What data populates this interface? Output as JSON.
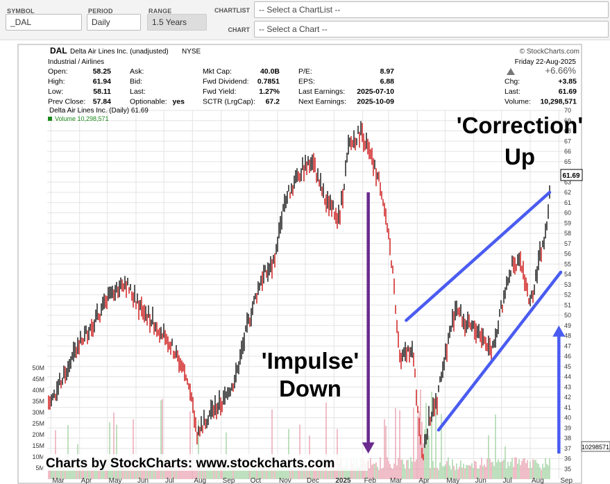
{
  "toolbar": {
    "symbol_label": "SYMBOL",
    "symbol_value": "_DAL",
    "period_label": "PERIOD",
    "period_value": "Daily",
    "range_label": "RANGE",
    "range_value": "1.5 Years",
    "chartlist_label": "CHARTLIST",
    "chartlist_placeholder": "-- Select a ChartList --",
    "chart_label": "CHART",
    "chart_placeholder": "-- Select a Chart --"
  },
  "header": {
    "ticker": "DAL",
    "company": "Delta Air Lines Inc. (unadjusted)",
    "exchange": "NYSE",
    "copyright": "© StockCharts.com",
    "industry": "Industrial / Airlines",
    "date": "Friday  22-Aug-2025",
    "pct_change": "+6.66%",
    "stats_col1": [
      [
        "Open:",
        "58.25"
      ],
      [
        "High:",
        "61.94"
      ],
      [
        "Low:",
        "58.11"
      ],
      [
        "Prev Close:",
        "57.84"
      ]
    ],
    "stats_col2": [
      [
        "Ask:",
        ""
      ],
      [
        "Bid:",
        ""
      ],
      [
        "Last:",
        ""
      ],
      [
        "Optionable:",
        "yes"
      ]
    ],
    "stats_col3": [
      [
        "Mkt Cap:",
        "40.0B"
      ],
      [
        "Fwd Dividend:",
        "0.7851"
      ],
      [
        "Fwd Yield:",
        "1.27%"
      ],
      [
        "SCTR (LrgCap):",
        "67.2"
      ]
    ],
    "stats_col4": [
      [
        "P/E:",
        "8.97"
      ],
      [
        "EPS:",
        "6.88"
      ],
      [
        "Last Earnings:",
        "2025-07-10"
      ],
      [
        "Next Earnings:",
        "2025-10-09"
      ]
    ],
    "stats_col5": [
      [
        "",
        ""
      ],
      [
        "Chg:",
        "+3.85"
      ],
      [
        "Last:",
        "61.69"
      ],
      [
        "Volume:",
        "10,298,571"
      ]
    ],
    "legend_price": "Delta Air Lines Inc. (Daily) 61.69",
    "legend_volume": "Volume 10,298,571"
  },
  "annotations": {
    "correction_line1": "'Correction'",
    "correction_line2": "Up",
    "impulse_line1": "'Impulse'",
    "impulse_line2": "Down",
    "watermark": "Charts by StockCharts:  www.stockcharts.com"
  },
  "colors": {
    "up_bar": "#111111",
    "down_bar": "#cc1111",
    "volume_up": "#9ccf9c",
    "volume_down": "#e89aaa",
    "purple_arrow": "#6a2a8e",
    "blue_lines": "#4a5cf0",
    "grid": "#e3e3e3"
  },
  "chart_data": {
    "type": "ohlc",
    "title": "Delta Air Lines Inc. (Daily) 61.69",
    "last_price_label": "61.69",
    "volume_last_label": "10298571",
    "price_ylim": [
      34,
      70
    ],
    "price_ticks": [
      35,
      36,
      37,
      38,
      39,
      40,
      41,
      42,
      43,
      44,
      45,
      46,
      47,
      48,
      49,
      50,
      51,
      52,
      53,
      54,
      55,
      56,
      57,
      58,
      59,
      60,
      61,
      62,
      63,
      64,
      65,
      66,
      67,
      68,
      69,
      70
    ],
    "volume_ticks": [
      "5M",
      "10M",
      "15M",
      "20M",
      "25M",
      "30M",
      "35M",
      "40M",
      "45M",
      "50M"
    ],
    "x_labels": [
      "Mar",
      "Apr",
      "May",
      "Jun",
      "Jul",
      "Aug",
      "Sep",
      "Oct",
      "Nov",
      "Dec",
      "2025",
      "Feb",
      "Mar",
      "Apr",
      "May",
      "Jun",
      "Jul",
      "Aug",
      "Sep"
    ],
    "price_path": [
      [
        "2024-03-01",
        41.5
      ],
      [
        "2024-03-15",
        44.0
      ],
      [
        "2024-03-28",
        46.5
      ],
      [
        "2024-04-10",
        48.5
      ],
      [
        "2024-04-25",
        50.5
      ],
      [
        "2024-05-08",
        52.5
      ],
      [
        "2024-05-20",
        53.3
      ],
      [
        "2024-06-03",
        51.0
      ],
      [
        "2024-06-18",
        49.5
      ],
      [
        "2024-07-03",
        48.0
      ],
      [
        "2024-07-15",
        46.0
      ],
      [
        "2024-07-26",
        44.0
      ],
      [
        "2024-08-06",
        38.5
      ],
      [
        "2024-08-20",
        40.5
      ],
      [
        "2024-09-03",
        41.5
      ],
      [
        "2024-09-17",
        44.0
      ],
      [
        "2024-10-01",
        49.5
      ],
      [
        "2024-10-14",
        53.5
      ],
      [
        "2024-10-28",
        55.0
      ],
      [
        "2024-11-08",
        61.0
      ],
      [
        "2024-11-25",
        64.0
      ],
      [
        "2024-12-09",
        65.0
      ],
      [
        "2024-12-23",
        61.0
      ],
      [
        "2025-01-07",
        59.5
      ],
      [
        "2025-01-17",
        66.5
      ],
      [
        "2025-01-31",
        68.0
      ],
      [
        "2025-02-07",
        66.0
      ],
      [
        "2025-02-21",
        62.5
      ],
      [
        "2025-03-04",
        55.5
      ],
      [
        "2025-03-14",
        45.5
      ],
      [
        "2025-03-26",
        47.0
      ],
      [
        "2025-04-07",
        36.0
      ],
      [
        "2025-04-14",
        40.0
      ],
      [
        "2025-04-22",
        41.5
      ],
      [
        "2025-05-02",
        46.5
      ],
      [
        "2025-05-13",
        51.0
      ],
      [
        "2025-05-23",
        49.0
      ],
      [
        "2025-06-06",
        48.5
      ],
      [
        "2025-06-20",
        46.5
      ],
      [
        "2025-07-03",
        51.5
      ],
      [
        "2025-07-14",
        55.5
      ],
      [
        "2025-07-24",
        54.5
      ],
      [
        "2025-08-01",
        51.0
      ],
      [
        "2025-08-12",
        56.0
      ],
      [
        "2025-08-18",
        58.0
      ],
      [
        "2025-08-22",
        61.69
      ]
    ],
    "annotations": [
      {
        "text": "'Impulse' Down",
        "type": "arrow-down",
        "from": [
          "2025-02-07",
          62
        ],
        "to": [
          "2025-02-07",
          36.5
        ]
      },
      {
        "text": "'Correction' Up",
        "type": "arrow-up",
        "from": [
          "2025-09-01",
          36.5
        ],
        "to": [
          "2025-09-01",
          49
        ]
      },
      {
        "type": "trendline",
        "from": [
          "2025-03-20",
          49.5
        ],
        "to": [
          "2025-08-22",
          62
        ]
      },
      {
        "type": "trendline",
        "from": [
          "2025-04-24",
          38.8
        ],
        "to": [
          "2025-09-03",
          54.2
        ]
      }
    ]
  }
}
